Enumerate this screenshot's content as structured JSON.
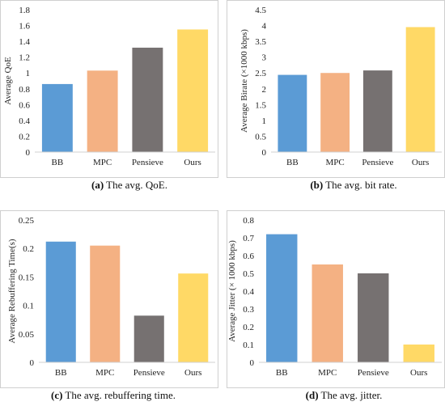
{
  "colors": {
    "BB": "#5b9bd5",
    "MPC": "#f4b183",
    "Pensieve": "#767171",
    "Ours": "#ffd966"
  },
  "chart_data": [
    {
      "type": "bar",
      "categories": [
        "BB",
        "MPC",
        "Pensieve",
        "Ours"
      ],
      "values": [
        0.86,
        1.03,
        1.32,
        1.55
      ],
      "ylabel": "Average QoE",
      "ylim": [
        0,
        1.8
      ],
      "yticks": [
        "0",
        "0.2",
        "0.4",
        "0.6",
        "0.8",
        "1",
        "1.2",
        "1.4",
        "1.6",
        "1.8"
      ],
      "caption_tag": "(a)",
      "caption_text": " The avg. QoE."
    },
    {
      "type": "bar",
      "categories": [
        "BB",
        "MPC",
        "Pensieve",
        "Ours"
      ],
      "values": [
        2.44,
        2.5,
        2.58,
        3.95
      ],
      "ylabel": "Average Birate (×1000 kbps)",
      "ylim": [
        0,
        4.5
      ],
      "yticks": [
        "0",
        "0.5",
        "1",
        "1.5",
        "2",
        "2.5",
        "3",
        "3.5",
        "4",
        "4.5"
      ],
      "caption_tag": "(b)",
      "caption_text": " The avg. bit rate."
    },
    {
      "type": "bar",
      "categories": [
        "BB",
        "MPC",
        "Pensieve",
        "Ours"
      ],
      "values": [
        0.212,
        0.205,
        0.082,
        0.156
      ],
      "ylabel": "Average Rebuffering Time(s)",
      "ylim": [
        0,
        0.25
      ],
      "yticks": [
        "0",
        "0.05",
        "0.1",
        "0.15",
        "0.2",
        "0.25"
      ],
      "caption_tag": "(c)",
      "caption_text": " The avg. rebuffering time."
    },
    {
      "type": "bar",
      "categories": [
        "BB",
        "MPC",
        "Pensieve",
        "Ours"
      ],
      "values": [
        0.72,
        0.55,
        0.5,
        0.1
      ],
      "ylabel": "Average Jitter (× 1000 kbps)",
      "ylim": [
        0,
        0.8
      ],
      "yticks": [
        "0",
        "0.1",
        "0.2",
        "0.3",
        "0.4",
        "0.5",
        "0.6",
        "0.7",
        "0.8"
      ],
      "caption_tag": "(d)",
      "caption_text": " The avg. jitter."
    }
  ]
}
